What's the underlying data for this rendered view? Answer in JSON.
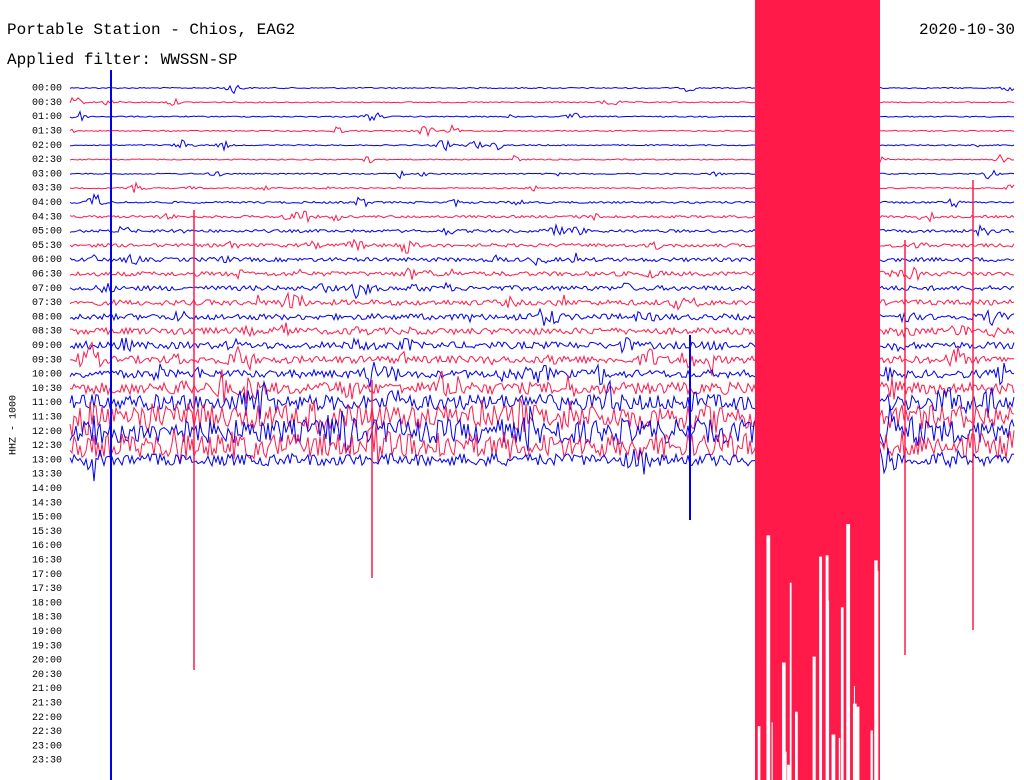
{
  "header": {
    "title": "Portable Station - Chios, EAG2",
    "date": "2020-10-30",
    "filter": "Applied filter: WWSSN-SP",
    "channel": "HHZ - 1000"
  },
  "rows": [
    "00:00",
    "00:30",
    "01:00",
    "01:30",
    "02:00",
    "02:30",
    "03:00",
    "03:30",
    "04:00",
    "04:30",
    "05:00",
    "05:30",
    "06:00",
    "06:30",
    "07:00",
    "07:30",
    "08:00",
    "08:30",
    "09:00",
    "09:30",
    "10:00",
    "10:30",
    "11:00",
    "11:30",
    "12:00",
    "12:30",
    "13:00",
    "13:30",
    "14:00",
    "14:30",
    "15:00",
    "15:30",
    "16:00",
    "16:30",
    "17:00",
    "17:30",
    "18:00",
    "18:30",
    "19:00",
    "19:30",
    "20:00",
    "20:30",
    "21:00",
    "21:30",
    "22:00",
    "22:30",
    "23:00",
    "23:30"
  ]
}
